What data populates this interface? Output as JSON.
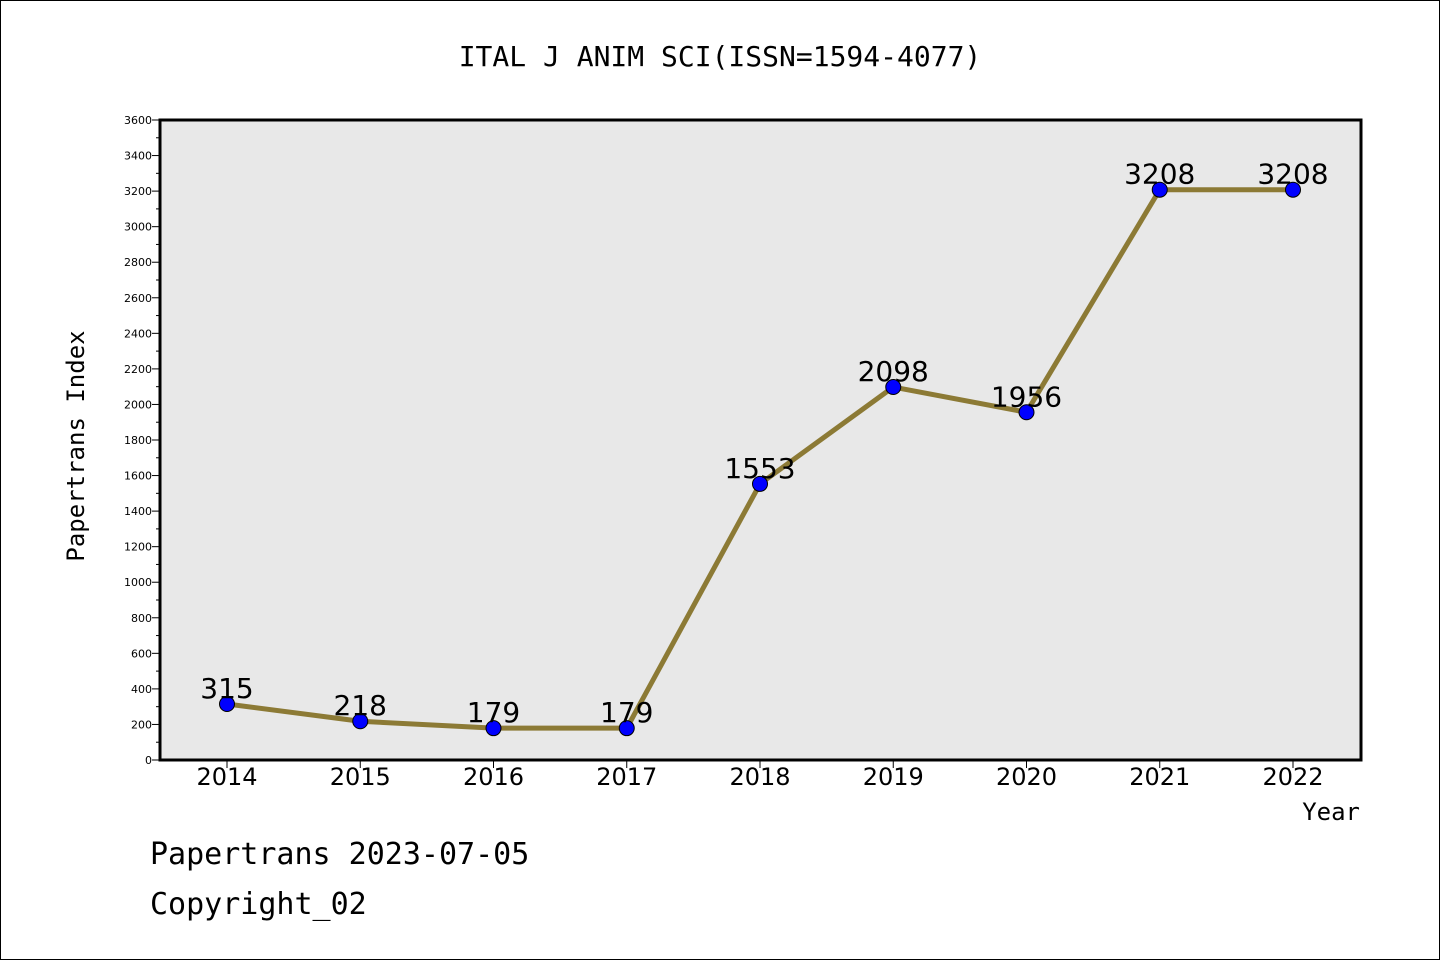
{
  "chart_data": {
    "type": "line",
    "title": "ITAL J ANIM SCI(ISSN=1594-4077)",
    "xlabel": "Year",
    "ylabel": "Papertrans Index",
    "categories": [
      "2014",
      "2015",
      "2016",
      "2017",
      "2018",
      "2019",
      "2020",
      "2021",
      "2022"
    ],
    "values": [
      315,
      218,
      179,
      179,
      1553,
      2098,
      1956,
      3208,
      3208
    ],
    "data_labels": [
      "315",
      "218",
      "179",
      "179",
      "1553",
      "2098",
      "1956",
      "3208",
      "3208"
    ],
    "ylim": [
      0,
      3600
    ],
    "yticks": [
      "0",
      "200",
      "400",
      "600",
      "800",
      "1000",
      "1200",
      "1400",
      "1600",
      "1800",
      "2000",
      "2200",
      "2400",
      "2600",
      "2800",
      "3000",
      "3200",
      "3400",
      "3600"
    ],
    "grid": false,
    "legend": "none",
    "line_color": "#8c7a35",
    "marker_color": "#0000ff",
    "plot_background": "#e8e8e8"
  },
  "footer": {
    "line1": "Papertrans 2023-07-05",
    "line2": "Copyright_02"
  }
}
